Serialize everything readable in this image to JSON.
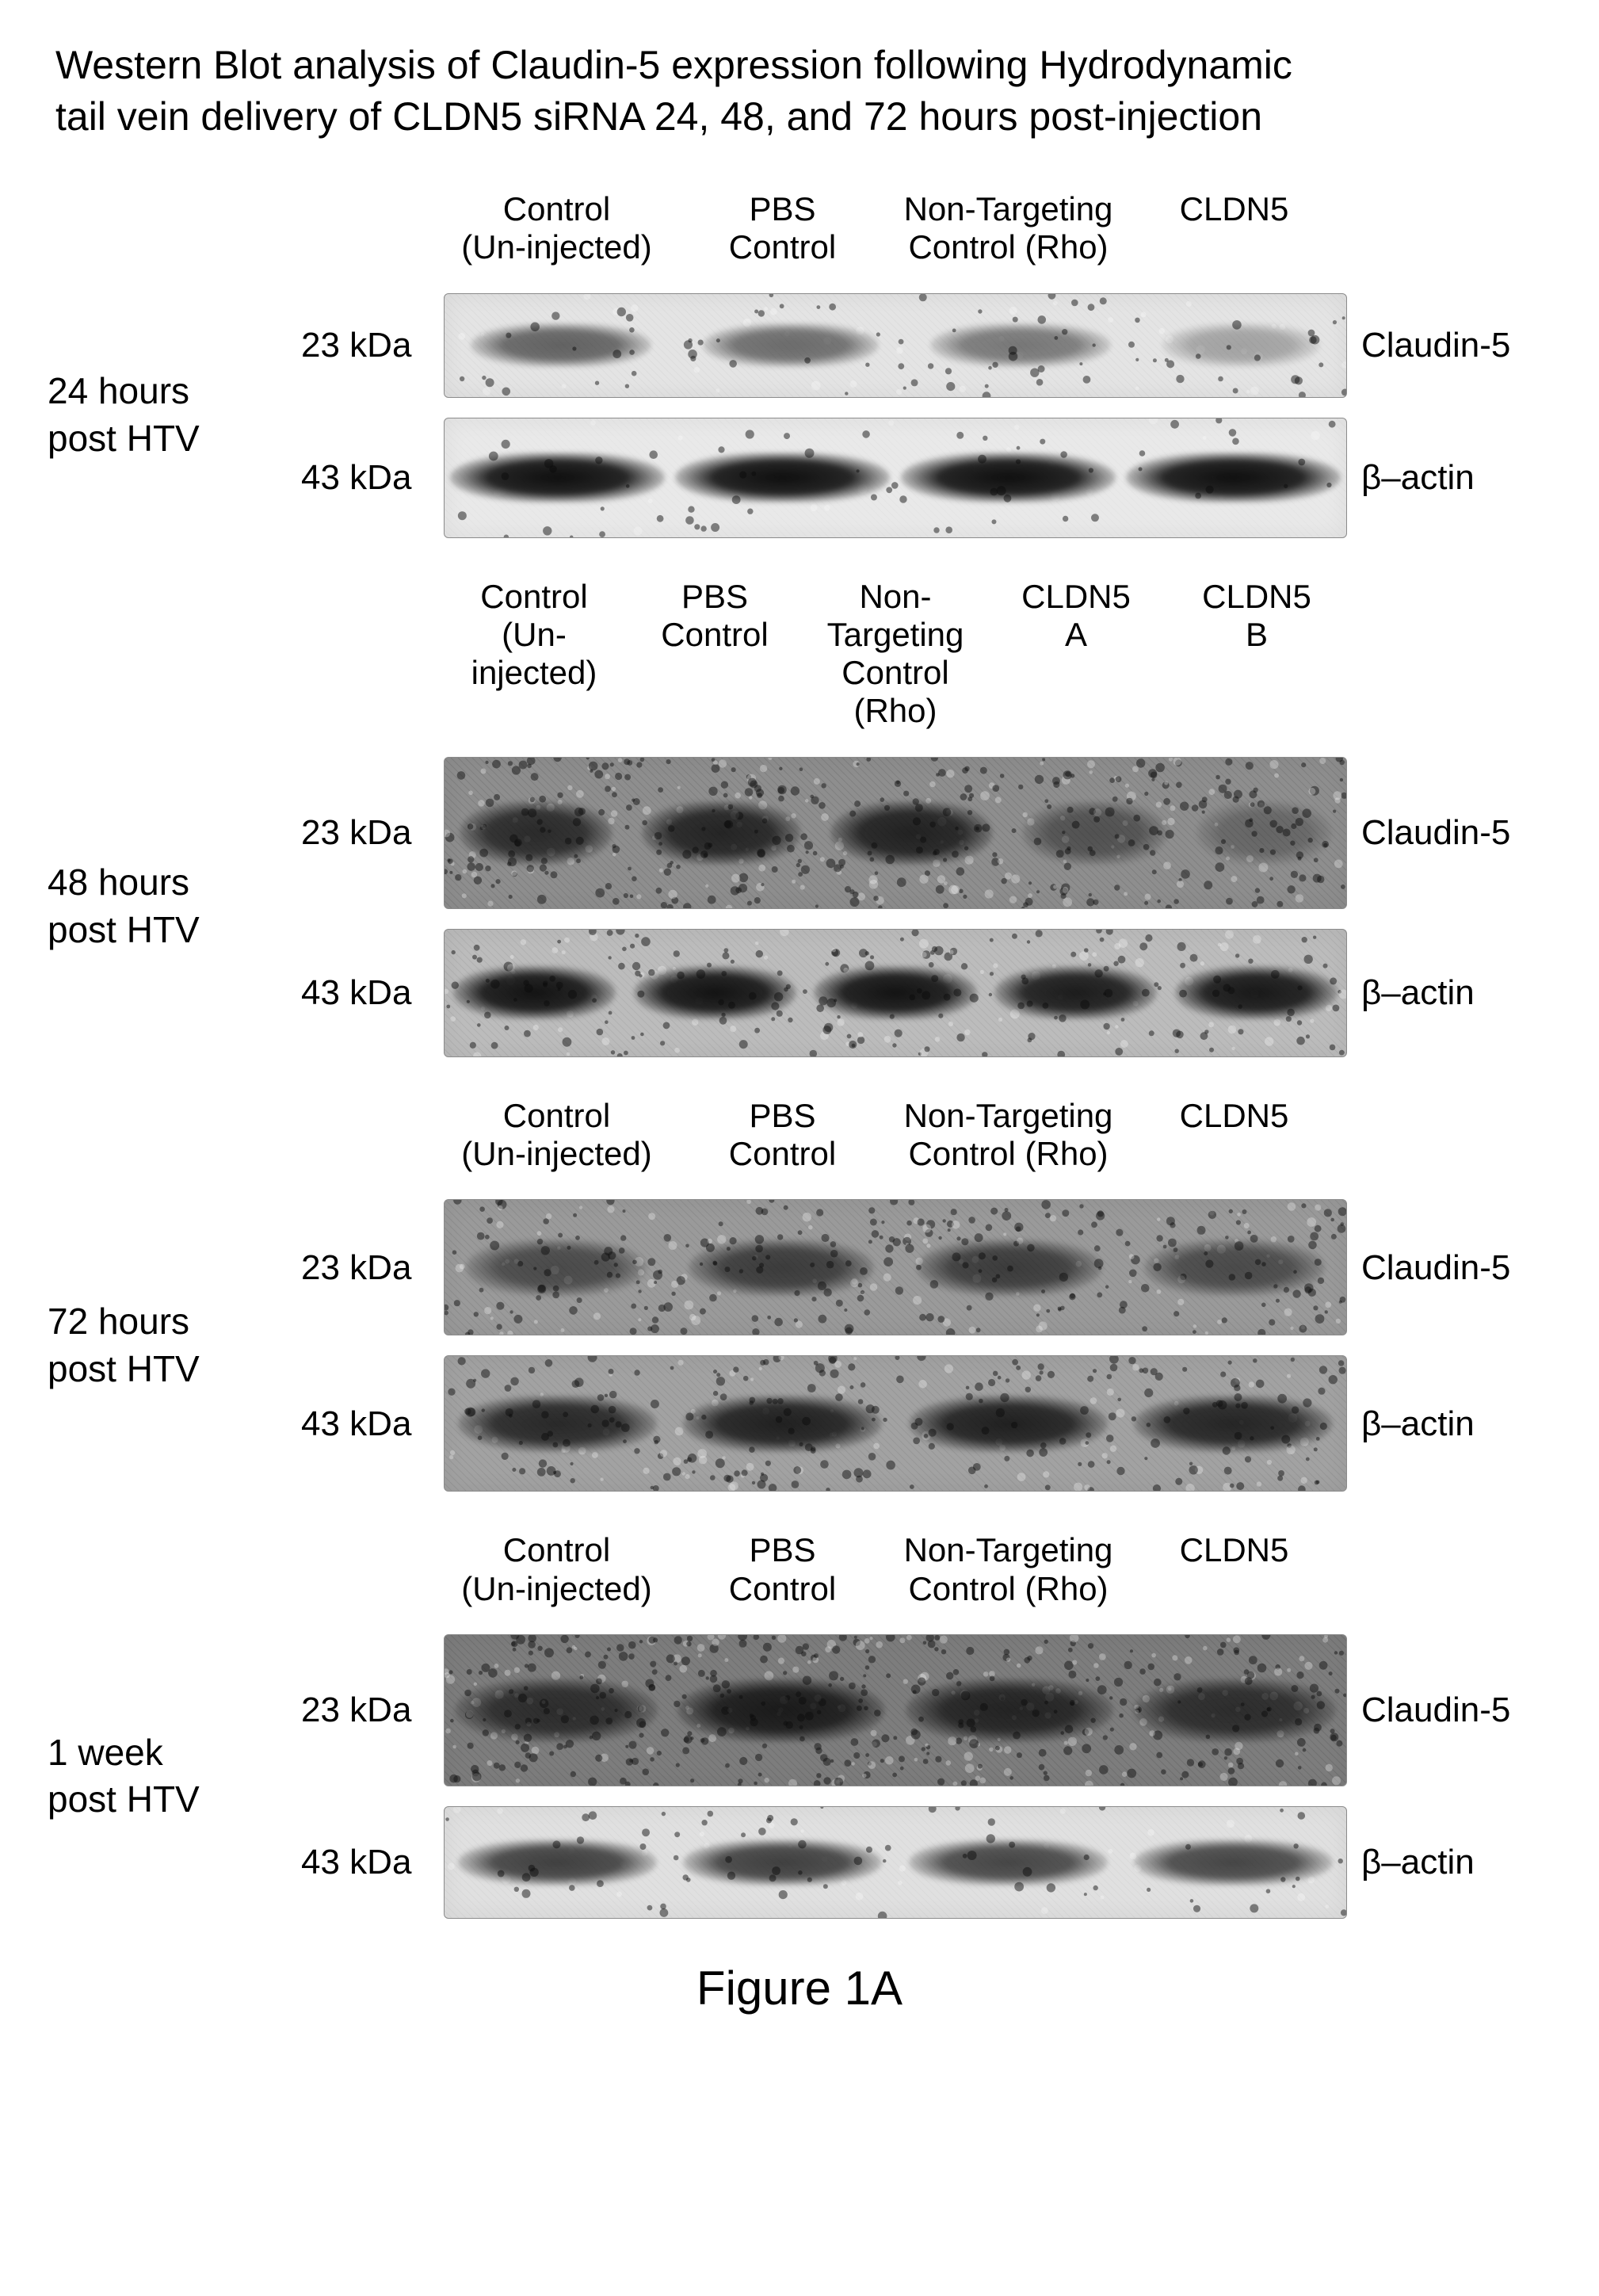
{
  "title_line1": "Western Blot analysis of Claudin-5 expression following Hydrodynamic",
  "title_line2": "tail vein delivery of CLDN5 siRNA 24, 48, and 72 hours post-injection",
  "figure_caption": "Figure 1A",
  "proteins": {
    "claudin5": "Claudin-5",
    "bactin": "β–actin"
  },
  "mw": {
    "23": "23 kDa",
    "43": "43 kDa"
  },
  "lane_sets": {
    "four": [
      {
        "l1": "Control",
        "l2": "(Un-injected)"
      },
      {
        "l1": "PBS",
        "l2": "Control"
      },
      {
        "l1": "Non-Targeting",
        "l2": "Control (Rho)"
      },
      {
        "l1": "CLDN5",
        "l2": ""
      }
    ],
    "five": [
      {
        "l1": "Control",
        "l2": "(Un-injected)"
      },
      {
        "l1": "PBS",
        "l2": "Control"
      },
      {
        "l1": "Non-Targeting",
        "l2": "Control (Rho)"
      },
      {
        "l1": "CLDN5",
        "l2": "A"
      },
      {
        "l1": "CLDN5",
        "l2": "B"
      }
    ]
  },
  "panels": [
    {
      "id": "p24",
      "timepoint": "24 hours\npost HTV",
      "lanes": "four",
      "blots": [
        {
          "protein": "claudin5",
          "mw": "23",
          "height": 130,
          "bg": "#e4e4e4",
          "noise": 0.1,
          "bands": [
            {
              "intensity": 0.6,
              "width": 0.8
            },
            {
              "intensity": 0.55,
              "width": 0.78
            },
            {
              "intensity": 0.5,
              "width": 0.8
            },
            {
              "intensity": 0.3,
              "width": 0.7
            }
          ]
        },
        {
          "protein": "bactin",
          "mw": "43",
          "height": 150,
          "bg": "#e9e9e9",
          "noise": 0.06,
          "bands": [
            {
              "intensity": 0.98,
              "width": 0.95
            },
            {
              "intensity": 0.98,
              "width": 0.95
            },
            {
              "intensity": 0.98,
              "width": 0.95
            },
            {
              "intensity": 0.98,
              "width": 0.95
            }
          ]
        }
      ]
    },
    {
      "id": "p48",
      "timepoint": "48 hours\npost HTV",
      "lanes": "five",
      "blots": [
        {
          "protein": "claudin5",
          "mw": "23",
          "height": 190,
          "bg": "#8e8e8e",
          "noise": 0.28,
          "bands": [
            {
              "intensity": 0.75,
              "width": 0.85
            },
            {
              "intensity": 0.8,
              "width": 0.88
            },
            {
              "intensity": 0.82,
              "width": 0.9
            },
            {
              "intensity": 0.45,
              "width": 0.8
            },
            {
              "intensity": 0.3,
              "width": 0.75
            }
          ]
        },
        {
          "protein": "bactin",
          "mw": "43",
          "height": 160,
          "bg": "#bcbcbc",
          "noise": 0.18,
          "bands": [
            {
              "intensity": 0.95,
              "width": 0.9
            },
            {
              "intensity": 0.95,
              "width": 0.9
            },
            {
              "intensity": 0.95,
              "width": 0.9
            },
            {
              "intensity": 0.9,
              "width": 0.9
            },
            {
              "intensity": 0.92,
              "width": 0.9
            }
          ]
        }
      ]
    },
    {
      "id": "p72",
      "timepoint": "72 hours\npost HTV",
      "lanes": "four",
      "blots": [
        {
          "protein": "claudin5",
          "mw": "23",
          "height": 170,
          "bg": "#9a9a9a",
          "noise": 0.22,
          "bands": [
            {
              "intensity": 0.55,
              "width": 0.8
            },
            {
              "intensity": 0.65,
              "width": 0.82
            },
            {
              "intensity": 0.65,
              "width": 0.82
            },
            {
              "intensity": 0.55,
              "width": 0.8
            }
          ]
        },
        {
          "protein": "bactin",
          "mw": "43",
          "height": 170,
          "bg": "#a2a2a2",
          "noise": 0.2,
          "bands": [
            {
              "intensity": 0.8,
              "width": 0.88
            },
            {
              "intensity": 0.85,
              "width": 0.88
            },
            {
              "intensity": 0.85,
              "width": 0.88
            },
            {
              "intensity": 0.82,
              "width": 0.88
            }
          ]
        }
      ]
    },
    {
      "id": "p1w",
      "timepoint": "1 week\npost HTV",
      "lanes": "four",
      "blots": [
        {
          "protein": "claudin5",
          "mw": "23",
          "height": 190,
          "bg": "#7d7d7d",
          "noise": 0.3,
          "bands": [
            {
              "intensity": 0.7,
              "width": 0.9
            },
            {
              "intensity": 0.85,
              "width": 0.92
            },
            {
              "intensity": 0.78,
              "width": 0.92
            },
            {
              "intensity": 0.7,
              "width": 0.9
            }
          ]
        },
        {
          "protein": "bactin",
          "mw": "43",
          "height": 140,
          "bg": "#e0e0e0",
          "noise": 0.08,
          "bands": [
            {
              "intensity": 0.75,
              "width": 0.88
            },
            {
              "intensity": 0.75,
              "width": 0.88
            },
            {
              "intensity": 0.72,
              "width": 0.88
            },
            {
              "intensity": 0.72,
              "width": 0.88
            }
          ]
        }
      ]
    }
  ],
  "style": {
    "band_color": "#1a1a1a",
    "grain_color_dark": "rgba(20,20,20,0.5)",
    "grain_color_light": "rgba(255,255,255,0.3)"
  }
}
